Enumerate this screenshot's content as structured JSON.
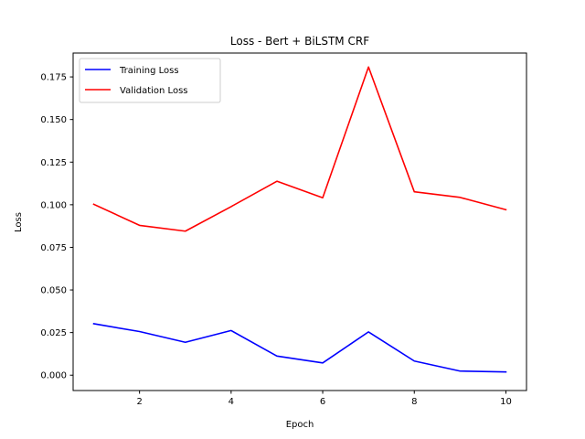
{
  "chart_data": {
    "type": "line",
    "title": "Loss - Bert + BiLSTM CRF",
    "xlabel": "Epoch",
    "ylabel": "Loss",
    "x": [
      1,
      2,
      3,
      4,
      5,
      6,
      7,
      8,
      9,
      10
    ],
    "xlim": [
      0.55,
      10.45
    ],
    "ylim": [
      -0.009,
      0.189
    ],
    "xticks": [
      2,
      4,
      6,
      8,
      10
    ],
    "yticks": [
      0.0,
      0.025,
      0.05,
      0.075,
      0.1,
      0.125,
      0.15,
      0.175
    ],
    "ytick_labels": [
      "0.000",
      "0.025",
      "0.050",
      "0.075",
      "0.100",
      "0.125",
      "0.150",
      "0.175"
    ],
    "xtick_labels": [
      "2",
      "4",
      "6",
      "8",
      "10"
    ],
    "grid": false,
    "legend_position": "top-left",
    "series": [
      {
        "name": "Training Loss",
        "color": "#0000ff",
        "values": [
          0.0302,
          0.0256,
          0.0193,
          0.0262,
          0.0112,
          0.0072,
          0.0254,
          0.0083,
          0.0024,
          0.0019
        ]
      },
      {
        "name": "Validation Loss",
        "color": "#ff0000",
        "values": [
          0.1003,
          0.0879,
          0.0845,
          0.0989,
          0.1138,
          0.1041,
          0.1808,
          0.1076,
          0.1043,
          0.0971
        ]
      }
    ]
  }
}
